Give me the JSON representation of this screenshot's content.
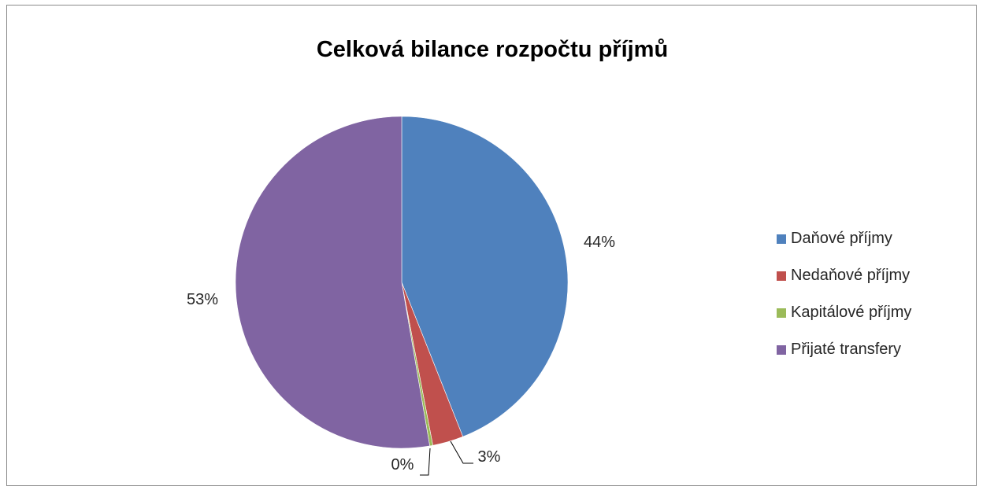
{
  "chart_data": {
    "type": "pie",
    "title": "Celková bilance rozpočtu příjmů",
    "legend_position": "right",
    "slices": [
      {
        "name": "Daňové příjmy",
        "value": 44,
        "label": "44%",
        "color": "#4F81BD"
      },
      {
        "name": "Nedaňové příjmy",
        "value": 3,
        "label": "3%",
        "color": "#C0504D"
      },
      {
        "name": "Kapitálové příjmy",
        "value": 0.3,
        "label": "0%",
        "color": "#9BBB59"
      },
      {
        "name": "Přijaté transfery",
        "value": 52.7,
        "label": "53%",
        "color": "#8064A2"
      }
    ]
  }
}
